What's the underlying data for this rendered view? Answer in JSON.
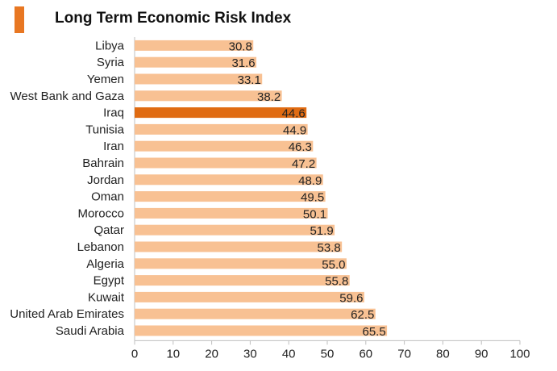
{
  "header": {
    "title": "Long Term Economic Risk Index",
    "accent_color": "#E87722"
  },
  "chart_data": {
    "type": "bar",
    "orientation": "horizontal",
    "title": "Long Term Economic Risk Index",
    "categories": [
      "Libya",
      "Syria",
      "Yemen",
      "West Bank and Gaza",
      "Iraq",
      "Tunisia",
      "Iran",
      "Bahrain",
      "Jordan",
      "Oman",
      "Morocco",
      "Qatar",
      "Lebanon",
      "Algeria",
      "Egypt",
      "Kuwait",
      "United Arab Emirates",
      "Saudi Arabia"
    ],
    "values": [
      30.8,
      31.6,
      33.1,
      38.2,
      44.6,
      44.9,
      46.3,
      47.2,
      48.9,
      49.5,
      50.1,
      51.9,
      53.8,
      55.0,
      55.8,
      59.6,
      62.5,
      65.5
    ],
    "value_labels": [
      "30.8",
      "31.6",
      "33.1",
      "38.2",
      "44.6",
      "44.9",
      "46.3",
      "47.2",
      "48.9",
      "49.5",
      "50.1",
      "51.9",
      "53.8",
      "55.0",
      "55.8",
      "59.6",
      "62.5",
      "65.5"
    ],
    "highlight": "Iraq",
    "xlim": [
      0,
      100
    ],
    "xticks": [
      "0",
      "10",
      "20",
      "30",
      "40",
      "50",
      "60",
      "70",
      "80",
      "90",
      "100"
    ],
    "bar_color": "#F8C193",
    "highlight_color": "#E06B12",
    "grid": false,
    "legend": "none"
  }
}
